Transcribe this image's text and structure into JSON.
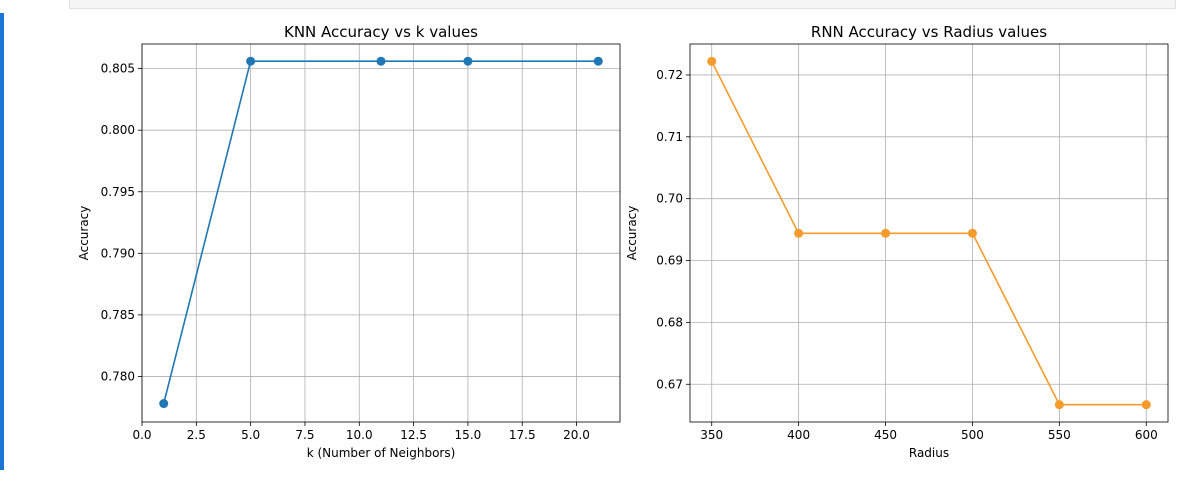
{
  "chart_data": [
    {
      "type": "line",
      "title": "KNN Accuracy vs k values",
      "xlabel": "k (Number of Neighbors)",
      "ylabel": "Accuracy",
      "x": [
        1,
        5,
        11,
        15,
        21
      ],
      "y": [
        0.7778,
        0.8056,
        0.8056,
        0.8056,
        0.8056
      ],
      "xlim": [
        0.0,
        22.0
      ],
      "ylim": [
        0.7763,
        0.807
      ],
      "xticks": [
        0.0,
        2.5,
        5.0,
        7.5,
        10.0,
        12.5,
        15.0,
        17.5,
        20.0
      ],
      "xtick_labels": [
        "0.0",
        "2.5",
        "5.0",
        "7.5",
        "10.0",
        "12.5",
        "15.0",
        "17.5",
        "20.0"
      ],
      "yticks": [
        0.78,
        0.785,
        0.79,
        0.795,
        0.8,
        0.805
      ],
      "ytick_labels": [
        "0.780",
        "0.785",
        "0.790",
        "0.795",
        "0.800",
        "0.805"
      ],
      "marker": "circle",
      "color": "#1f77b4",
      "grid": true
    },
    {
      "type": "line",
      "title": "RNN Accuracy vs Radius values",
      "xlabel": "Radius",
      "ylabel": "Accuracy",
      "x": [
        350,
        400,
        450,
        500,
        550,
        600
      ],
      "y": [
        0.7222,
        0.6944,
        0.6944,
        0.6944,
        0.6667,
        0.6667
      ],
      "xlim": [
        337.5,
        612.5
      ],
      "ylim": [
        0.6639,
        0.725
      ],
      "xticks": [
        350,
        400,
        450,
        500,
        550,
        600
      ],
      "xtick_labels": [
        "350",
        "400",
        "450",
        "500",
        "550",
        "600"
      ],
      "yticks": [
        0.67,
        0.68,
        0.69,
        0.7,
        0.71,
        0.72
      ],
      "ytick_labels": [
        "0.67",
        "0.68",
        "0.69",
        "0.70",
        "0.71",
        "0.72"
      ],
      "marker": "circle",
      "color": "#f59b2b",
      "grid": true
    }
  ]
}
